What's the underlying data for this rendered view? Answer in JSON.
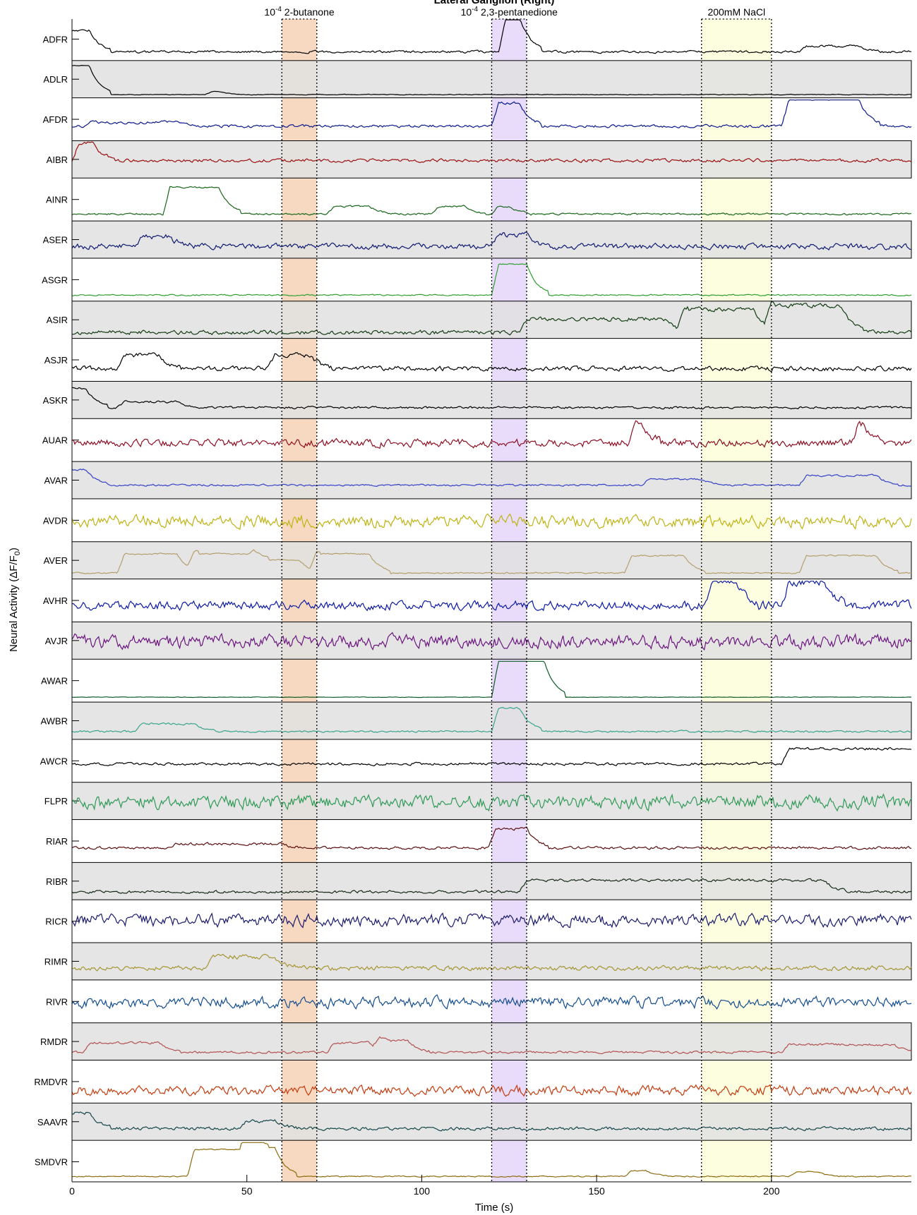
{
  "chart_data": {
    "type": "line",
    "title": "Lateral Ganglion (Right)",
    "xlabel": "Time (s)",
    "ylabel_main": "Neural Activity (",
    "ylabel_delta": "ΔF/F",
    "ylabel_sub": "0",
    "ylabel_close": ")",
    "xlim": [
      0,
      240
    ],
    "xticks": [
      0,
      50,
      100,
      150,
      200
    ],
    "xtick_labels": [
      "0",
      "50",
      "100",
      "150",
      "200"
    ],
    "stimuli": [
      {
        "start": 60,
        "end": 70,
        "color": "#f6d9c0",
        "label_base": "10",
        "label_exp": "-4",
        "label_text": "2-butanone"
      },
      {
        "start": 120,
        "end": 130,
        "color": "#e9dcfb",
        "label_base": "10",
        "label_exp": "-4",
        "label_text": "2,3-pentanedione"
      },
      {
        "start": 180,
        "end": 200,
        "color": "#fdfde0",
        "label_base": "",
        "label_exp": "",
        "label_text": "200mM NaCl"
      }
    ],
    "series": [
      {
        "name": "ADFR",
        "color": "#000000",
        "shaded": false,
        "baseline": 0.85,
        "noise": 0.05,
        "events": [
          [
            0,
            5,
            0.55
          ],
          [
            124,
            128,
            0.9
          ],
          [
            210,
            225,
            0.15
          ]
        ]
      },
      {
        "name": "ADLR",
        "color": "#000000",
        "shaded": true,
        "baseline": 0.92,
        "noise": 0.015,
        "events": [
          [
            0,
            5,
            0.75
          ],
          [
            40,
            42,
            0.08
          ]
        ]
      },
      {
        "name": "AFDR",
        "color": "#0a1a8c",
        "shaded": false,
        "baseline": 0.7,
        "noise": 0.06,
        "events": [
          [
            122,
            128,
            0.6
          ],
          [
            205,
            225,
            0.7
          ],
          [
            5,
            30,
            0.1
          ]
        ]
      },
      {
        "name": "AIBR",
        "color": "#9b1010",
        "shaded": true,
        "baseline": 0.55,
        "noise": 0.07,
        "events": [
          [
            2,
            6,
            0.45
          ]
        ]
      },
      {
        "name": "AINR",
        "color": "#176617",
        "shaded": false,
        "baseline": 0.9,
        "noise": 0.04,
        "events": [
          [
            28,
            42,
            0.7
          ],
          [
            75,
            85,
            0.2
          ],
          [
            105,
            112,
            0.2
          ],
          [
            122,
            125,
            0.2
          ]
        ]
      },
      {
        "name": "ASER",
        "color": "#0d1970",
        "shaded": true,
        "baseline": 0.7,
        "noise": 0.12,
        "events": [
          [
            20,
            28,
            0.25
          ],
          [
            122,
            130,
            0.3
          ]
        ]
      },
      {
        "name": "ASGR",
        "color": "#2ea02e",
        "shaded": false,
        "baseline": 0.92,
        "noise": 0.03,
        "events": [
          [
            122,
            130,
            0.8
          ]
        ]
      },
      {
        "name": "ASIR",
        "color": "#123c12",
        "shaded": true,
        "baseline": 0.85,
        "noise": 0.09,
        "events": [
          [
            130,
            170,
            0.35
          ],
          [
            175,
            195,
            0.6
          ],
          [
            200,
            220,
            0.7
          ]
        ]
      },
      {
        "name": "ASJR",
        "color": "#000000",
        "shaded": false,
        "baseline": 0.75,
        "noise": 0.1,
        "events": [
          [
            15,
            25,
            0.35
          ],
          [
            58,
            68,
            0.35
          ]
        ]
      },
      {
        "name": "ASKR",
        "color": "#000000",
        "shaded": true,
        "baseline": 0.72,
        "noise": 0.05,
        "events": [
          [
            0,
            4,
            0.5
          ],
          [
            15,
            30,
            0.15
          ]
        ]
      },
      {
        "name": "AUAR",
        "color": "#8e0e22",
        "shaded": false,
        "baseline": 0.6,
        "noise": 0.16,
        "events": [
          [
            161,
            162,
            0.6
          ],
          [
            225,
            226,
            0.5
          ]
        ]
      },
      {
        "name": "AVAR",
        "color": "#3442c8",
        "shaded": true,
        "baseline": 0.65,
        "noise": 0.04,
        "events": [
          [
            0,
            4,
            0.4
          ],
          [
            210,
            230,
            0.25
          ],
          [
            165,
            180,
            0.15
          ]
        ]
      },
      {
        "name": "AVDR",
        "color": "#bfb212",
        "shaded": false,
        "baseline": 0.55,
        "noise": 0.25,
        "events": []
      },
      {
        "name": "AVER",
        "color": "#b49f6c",
        "shaded": true,
        "baseline": 0.85,
        "noise": 0.03,
        "events": [
          [
            15,
            30,
            0.5
          ],
          [
            35,
            50,
            0.5
          ],
          [
            52,
            65,
            0.35
          ],
          [
            70,
            85,
            0.5
          ],
          [
            160,
            175,
            0.45
          ],
          [
            210,
            230,
            0.45
          ]
        ]
      },
      {
        "name": "AVHR",
        "color": "#0b19a6",
        "shaded": false,
        "baseline": 0.65,
        "noise": 0.18,
        "events": [
          [
            183,
            190,
            0.6
          ],
          [
            205,
            215,
            0.6
          ]
        ]
      },
      {
        "name": "AVJR",
        "color": "#6b157f",
        "shaded": true,
        "baseline": 0.55,
        "noise": 0.28,
        "events": []
      },
      {
        "name": "AWAR",
        "color": "#0e5b24",
        "shaded": false,
        "baseline": 0.95,
        "noise": 0.01,
        "events": [
          [
            122,
            135,
            0.95
          ]
        ]
      },
      {
        "name": "AWBR",
        "color": "#3aa48e",
        "shaded": true,
        "baseline": 0.8,
        "noise": 0.04,
        "events": [
          [
            20,
            35,
            0.2
          ],
          [
            122,
            128,
            0.6
          ]
        ]
      },
      {
        "name": "AWCR",
        "color": "#000000",
        "shaded": false,
        "baseline": 0.6,
        "noise": 0.06,
        "events": [
          [
            205,
            240,
            0.4
          ]
        ]
      },
      {
        "name": "FLPR",
        "color": "#2e9a55",
        "shaded": true,
        "baseline": 0.55,
        "noise": 0.3,
        "events": []
      },
      {
        "name": "RIAR",
        "color": "#5c0e0e",
        "shaded": false,
        "baseline": 0.7,
        "noise": 0.06,
        "events": [
          [
            121,
            130,
            0.5
          ],
          [
            30,
            60,
            0.1
          ]
        ]
      },
      {
        "name": "RIBR",
        "color": "#152a15",
        "shaded": true,
        "baseline": 0.8,
        "noise": 0.06,
        "events": [
          [
            130,
            215,
            0.3
          ]
        ]
      },
      {
        "name": "RICR",
        "color": "#1a1a6e",
        "shaded": false,
        "baseline": 0.5,
        "noise": 0.25,
        "events": []
      },
      {
        "name": "RIMR",
        "color": "#a59534",
        "shaded": true,
        "baseline": 0.7,
        "noise": 0.1,
        "events": [
          [
            40,
            58,
            0.3
          ]
        ]
      },
      {
        "name": "RIVR",
        "color": "#124c8e",
        "shaded": false,
        "baseline": 0.55,
        "noise": 0.22,
        "events": []
      },
      {
        "name": "RMDR",
        "color": "#b35252",
        "shaded": true,
        "baseline": 0.8,
        "noise": 0.05,
        "events": [
          [
            5,
            25,
            0.25
          ],
          [
            75,
            85,
            0.25
          ],
          [
            88,
            96,
            0.3
          ],
          [
            205,
            235,
            0.2
          ]
        ]
      },
      {
        "name": "RMDVR",
        "color": "#c43b0e",
        "shaded": false,
        "baseline": 0.75,
        "noise": 0.2,
        "events": []
      },
      {
        "name": "SAAVR",
        "color": "#14464a",
        "shaded": true,
        "baseline": 0.7,
        "noise": 0.07,
        "events": [
          [
            0,
            5,
            0.4
          ],
          [
            50,
            58,
            0.2
          ]
        ]
      },
      {
        "name": "SMDVR",
        "color": "#8e6c0e",
        "shaded": false,
        "baseline": 0.9,
        "noise": 0.025,
        "events": [
          [
            35,
            50,
            0.7
          ],
          [
            50,
            58,
            0.75
          ],
          [
            160,
            164,
            0.15
          ],
          [
            207,
            213,
            0.12
          ]
        ]
      }
    ]
  }
}
